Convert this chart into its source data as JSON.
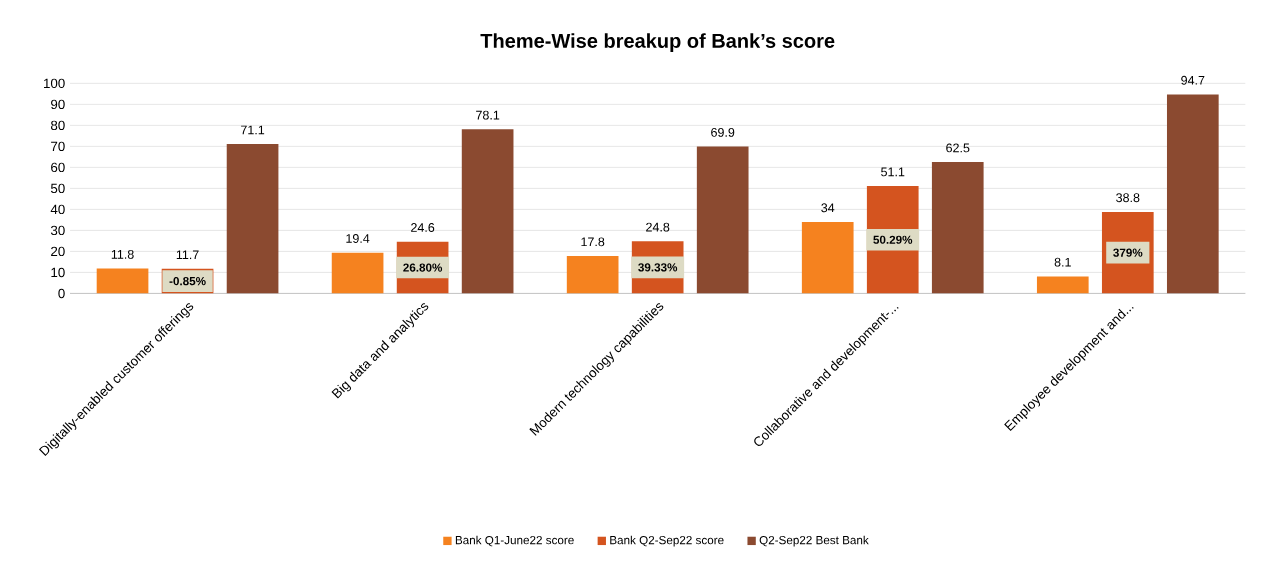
{
  "chart_data": {
    "type": "bar",
    "title": "Theme-Wise breakup of Bank’s score",
    "categories": [
      "Digitally-enabled customer offerings",
      "Big data and analytics",
      "Modern technology capabilities",
      "Collaborative and development-...",
      "Employee development and..."
    ],
    "series": [
      {
        "name": "Bank Q1-June22 score",
        "color": "#f5821f",
        "values": [
          11.8,
          19.4,
          17.8,
          34,
          8.1
        ]
      },
      {
        "name": "Bank Q2-Sep22 score",
        "color": "#d4541f",
        "values": [
          11.7,
          24.6,
          24.8,
          51.1,
          38.8
        ]
      },
      {
        "name": "Q2-Sep22 Best Bank",
        "color": "#8b4a30",
        "values": [
          71.1,
          78.1,
          69.9,
          62.5,
          94.7
        ]
      }
    ],
    "ylim": [
      0,
      100
    ],
    "yticks": [
      0,
      10,
      20,
      30,
      40,
      50,
      60,
      70,
      80,
      90,
      100
    ],
    "grid": "y",
    "legend": "bottom",
    "data_labels": true,
    "annotations": [
      "-0.85%",
      "26.80%",
      "39.33%",
      "50.29%",
      "379%"
    ]
  }
}
